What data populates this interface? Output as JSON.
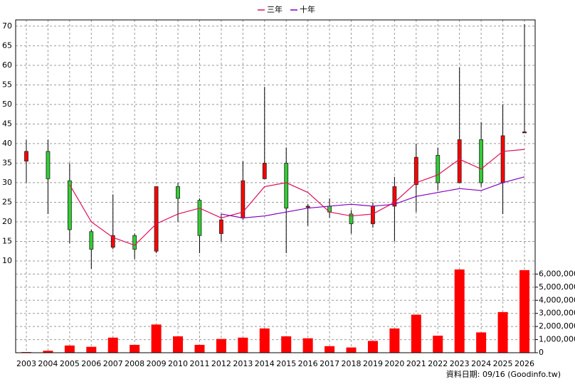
{
  "chart_data": {
    "type": "candlestick",
    "legend": "top",
    "grid": true,
    "up_color": "#ff0000",
    "down_color": "#33cc33",
    "categories": [
      "2003",
      "2004",
      "2005",
      "2006",
      "2007",
      "2008",
      "2009",
      "2010",
      "2011",
      "2012",
      "2013",
      "2014",
      "2015",
      "2016",
      "2017",
      "2018",
      "2019",
      "2020",
      "2021",
      "2022",
      "2023",
      "2024",
      "2025",
      "2026"
    ],
    "open": [
      35.5,
      38,
      30.5,
      17.5,
      13.5,
      16.5,
      12.5,
      29,
      25.5,
      17,
      21,
      31,
      35,
      23.8,
      24,
      22,
      19.5,
      24,
      29.5,
      37,
      30,
      41,
      30,
      42.8
    ],
    "high": [
      41,
      41,
      35,
      18,
      27,
      17,
      29,
      30,
      26,
      22,
      35.5,
      54.5,
      39,
      24.5,
      26,
      23,
      25,
      31.5,
      40,
      39,
      59.5,
      45.5,
      50,
      70.5
    ],
    "low": [
      30,
      22,
      14.5,
      8,
      13,
      10.5,
      12,
      20,
      12,
      15,
      20.5,
      31,
      12,
      19,
      21,
      17,
      18.5,
      15,
      22.5,
      28,
      30,
      29,
      22,
      43
    ],
    "close": [
      38,
      31,
      18,
      13,
      16.5,
      13,
      29,
      26,
      16.5,
      20.5,
      30.5,
      35,
      23.5,
      24,
      22.5,
      19.5,
      24,
      29,
      36.5,
      30,
      41,
      30,
      42,
      43
    ],
    "ylim": [
      8,
      71.6
    ],
    "yticks": [
      10,
      15,
      20,
      25,
      30,
      35,
      40,
      45,
      50,
      55,
      60,
      65,
      70
    ],
    "series": [
      {
        "name": "三年",
        "color": "#e0105a",
        "values": [
          null,
          null,
          29.5,
          20,
          16,
          14,
          19.5,
          22,
          23.5,
          21,
          22.5,
          29,
          30,
          27.5,
          22.5,
          21.5,
          22,
          25,
          30,
          32,
          36,
          33.5,
          38,
          38.5
        ]
      },
      {
        "name": "十年",
        "color": "#8000c0",
        "values": [
          null,
          null,
          null,
          null,
          null,
          null,
          null,
          null,
          null,
          22,
          21,
          21.5,
          22.5,
          23.5,
          24,
          24.5,
          24,
          24.5,
          26.5,
          27.5,
          28.5,
          28,
          30,
          31.5
        ]
      }
    ],
    "volume": {
      "color": "#ff0000",
      "values": [
        50000,
        150000,
        550000,
        450000,
        1150000,
        600000,
        2150000,
        1250000,
        600000,
        1050000,
        1150000,
        1850000,
        1250000,
        1100000,
        500000,
        400000,
        900000,
        1850000,
        2900000,
        1300000,
        6350000,
        1550000,
        3100000,
        6300000
      ],
      "ylim": [
        0,
        6400000
      ],
      "yticks": [
        0,
        {
          "value": 1000000,
          "label": "1,000,000"
        },
        {
          "value": 2000000,
          "label": "2,000,000"
        },
        {
          "value": 3000000,
          "label": "3,000,000"
        },
        {
          "value": 4000000,
          "label": "4,000,000"
        },
        {
          "value": 5000000,
          "label": "5,000,000"
        },
        {
          "value": 6000000,
          "label": "6,000,000"
        }
      ]
    },
    "source": "資料日期: 09/16 (Goodinfo.tw)"
  }
}
